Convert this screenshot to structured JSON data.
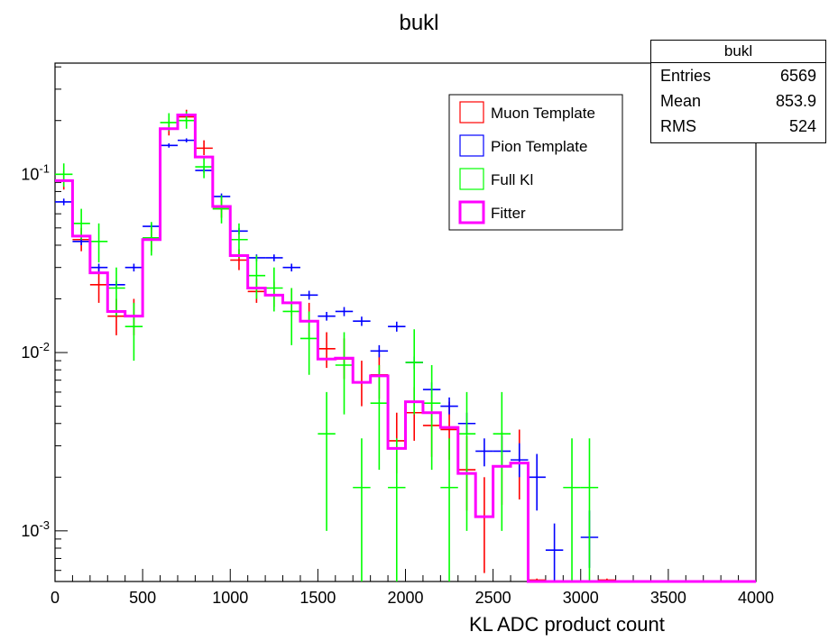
{
  "title": "bukl",
  "xlabel": "KL ADC product count",
  "statbox": {
    "title": "bukl",
    "rows": [
      {
        "label": "Entries",
        "value": "6569"
      },
      {
        "label": "Mean",
        "value": "853.9"
      },
      {
        "label": "RMS",
        "value": "524"
      }
    ]
  },
  "colors": {
    "muon": "#ff0000",
    "pion": "#0000ff",
    "full": "#00ff00",
    "fitter": "#ff00ff"
  },
  "chart_data": {
    "type": "line",
    "title": "bukl",
    "xlabel": "KL ADC product count",
    "ylabel": "",
    "xlim": [
      0,
      4000
    ],
    "ylim": [
      0.00052,
      0.42
    ],
    "yscale": "log",
    "grid": false,
    "legend_position": "top-center",
    "x_tick_labels": [
      "0",
      "500",
      "1000",
      "1500",
      "2000",
      "2500",
      "3000",
      "3500",
      "4000"
    ],
    "y_tick_labels": [
      {
        "base": "10",
        "exp": "-1",
        "value": 0.1
      },
      {
        "base": "10",
        "exp": "-2",
        "value": 0.01
      },
      {
        "base": "10",
        "exp": "-3",
        "value": 0.001
      }
    ],
    "bin_width": 100,
    "bin_centers": [
      50,
      150,
      250,
      350,
      450,
      550,
      650,
      750,
      850,
      950,
      1050,
      1150,
      1250,
      1350,
      1450,
      1550,
      1650,
      1750,
      1850,
      1950,
      2050,
      2150,
      2250,
      2350,
      2450,
      2550,
      2650,
      2750,
      2850,
      2950,
      3050,
      3150,
      3250,
      3350,
      3450,
      3550,
      3650,
      3750,
      3850,
      3950
    ],
    "series": [
      {
        "name": "Muon Template",
        "color": "#ff0000",
        "style": "errorbar",
        "points": [
          {
            "x": 50,
            "y": 0.092,
            "lo": 0.082,
            "hi": 0.104
          },
          {
            "x": 150,
            "y": 0.043,
            "lo": 0.037,
            "hi": 0.05
          },
          {
            "x": 250,
            "y": 0.024,
            "lo": 0.019,
            "hi": 0.03
          },
          {
            "x": 350,
            "y": 0.016,
            "lo": 0.0125,
            "hi": 0.02
          },
          {
            "x": 450,
            "y": 0.016,
            "lo": 0.0125,
            "hi": 0.02
          },
          {
            "x": 550,
            "y": 0.043,
            "lo": 0.037,
            "hi": 0.05
          },
          {
            "x": 650,
            "y": 0.18,
            "lo": 0.165,
            "hi": 0.2
          },
          {
            "x": 750,
            "y": 0.21,
            "lo": 0.195,
            "hi": 0.23
          },
          {
            "x": 850,
            "y": 0.14,
            "lo": 0.128,
            "hi": 0.155
          },
          {
            "x": 950,
            "y": 0.064,
            "lo": 0.057,
            "hi": 0.072
          },
          {
            "x": 1050,
            "y": 0.033,
            "lo": 0.029,
            "hi": 0.038
          },
          {
            "x": 1150,
            "y": 0.022,
            "lo": 0.019,
            "hi": 0.026
          },
          {
            "x": 1250,
            "y": 0.021,
            "lo": 0.018,
            "hi": 0.025
          },
          {
            "x": 1350,
            "y": 0.019,
            "lo": 0.016,
            "hi": 0.023
          },
          {
            "x": 1450,
            "y": 0.015,
            "lo": 0.012,
            "hi": 0.019
          },
          {
            "x": 1550,
            "y": 0.0105,
            "lo": 0.0082,
            "hi": 0.013
          },
          {
            "x": 1650,
            "y": 0.0092,
            "lo": 0.0071,
            "hi": 0.012
          },
          {
            "x": 1750,
            "y": 0.0068,
            "lo": 0.005,
            "hi": 0.009
          },
          {
            "x": 1850,
            "y": 0.0075,
            "lo": 0.0055,
            "hi": 0.0098
          },
          {
            "x": 1950,
            "y": 0.0032,
            "lo": 0.0021,
            "hi": 0.0046
          },
          {
            "x": 2050,
            "y": 0.0046,
            "lo": 0.0032,
            "hi": 0.0064
          },
          {
            "x": 2150,
            "y": 0.0039,
            "lo": 0.0026,
            "hi": 0.0056
          },
          {
            "x": 2250,
            "y": 0.0037,
            "lo": 0.0025,
            "hi": 0.0053
          },
          {
            "x": 2350,
            "y": 0.0022,
            "lo": 0.0013,
            "hi": 0.0034
          },
          {
            "x": 2450,
            "y": 0.0012,
            "lo": 0.00058,
            "hi": 0.002
          },
          {
            "x": 2550,
            "y": 0.0023,
            "lo": 0.0014,
            "hi": 0.0036
          },
          {
            "x": 2650,
            "y": 0.0024,
            "lo": 0.0015,
            "hi": 0.0037
          },
          {
            "x": 2750,
            "y": 0.00053,
            "lo": 0.00052,
            "hi": 0.00054
          },
          {
            "x": 3150,
            "y": 0.00053,
            "lo": 0.00052,
            "hi": 0.00054
          }
        ]
      },
      {
        "name": "Pion Template",
        "color": "#0000ff",
        "style": "errorbar",
        "points": [
          {
            "x": 50,
            "y": 0.07,
            "lo": 0.067,
            "hi": 0.073
          },
          {
            "x": 150,
            "y": 0.042,
            "lo": 0.04,
            "hi": 0.044
          },
          {
            "x": 250,
            "y": 0.03,
            "lo": 0.0285,
            "hi": 0.0315
          },
          {
            "x": 350,
            "y": 0.024,
            "lo": 0.0228,
            "hi": 0.0252
          },
          {
            "x": 450,
            "y": 0.03,
            "lo": 0.0285,
            "hi": 0.0315
          },
          {
            "x": 550,
            "y": 0.051,
            "lo": 0.049,
            "hi": 0.053
          },
          {
            "x": 650,
            "y": 0.145,
            "lo": 0.141,
            "hi": 0.149
          },
          {
            "x": 750,
            "y": 0.155,
            "lo": 0.151,
            "hi": 0.159
          },
          {
            "x": 850,
            "y": 0.105,
            "lo": 0.102,
            "hi": 0.108
          },
          {
            "x": 950,
            "y": 0.075,
            "lo": 0.072,
            "hi": 0.078
          },
          {
            "x": 1050,
            "y": 0.048,
            "lo": 0.046,
            "hi": 0.05
          },
          {
            "x": 1150,
            "y": 0.034,
            "lo": 0.0325,
            "hi": 0.0355
          },
          {
            "x": 1250,
            "y": 0.034,
            "lo": 0.0325,
            "hi": 0.0355
          },
          {
            "x": 1350,
            "y": 0.03,
            "lo": 0.0285,
            "hi": 0.0315
          },
          {
            "x": 1450,
            "y": 0.021,
            "lo": 0.0198,
            "hi": 0.0222
          },
          {
            "x": 1550,
            "y": 0.016,
            "lo": 0.0151,
            "hi": 0.0169
          },
          {
            "x": 1650,
            "y": 0.017,
            "lo": 0.016,
            "hi": 0.018
          },
          {
            "x": 1750,
            "y": 0.015,
            "lo": 0.0141,
            "hi": 0.0159
          },
          {
            "x": 1850,
            "y": 0.0102,
            "lo": 0.0094,
            "hi": 0.011
          },
          {
            "x": 1950,
            "y": 0.014,
            "lo": 0.0131,
            "hi": 0.0149
          },
          {
            "x": 2050,
            "y": 0.0088,
            "lo": 0.0081,
            "hi": 0.0095
          },
          {
            "x": 2150,
            "y": 0.0062,
            "lo": 0.0056,
            "hi": 0.0068
          },
          {
            "x": 2250,
            "y": 0.005,
            "lo": 0.0045,
            "hi": 0.0056
          },
          {
            "x": 2350,
            "y": 0.004,
            "lo": 0.0035,
            "hi": 0.0046
          },
          {
            "x": 2450,
            "y": 0.0028,
            "lo": 0.0023,
            "hi": 0.0033
          },
          {
            "x": 2550,
            "y": 0.0028,
            "lo": 0.0023,
            "hi": 0.0034
          },
          {
            "x": 2650,
            "y": 0.0025,
            "lo": 0.002,
            "hi": 0.0031
          },
          {
            "x": 2750,
            "y": 0.002,
            "lo": 0.0013,
            "hi": 0.0027
          },
          {
            "x": 2850,
            "y": 0.00078,
            "lo": 0.00052,
            "hi": 0.0011
          },
          {
            "x": 3050,
            "y": 0.00092,
            "lo": 0.00062,
            "hi": 0.0013
          }
        ]
      },
      {
        "name": "Full Kl",
        "color": "#00ff00",
        "style": "errorbar",
        "points": [
          {
            "x": 50,
            "y": 0.1,
            "lo": 0.085,
            "hi": 0.115
          },
          {
            "x": 150,
            "y": 0.053,
            "lo": 0.043,
            "hi": 0.064
          },
          {
            "x": 250,
            "y": 0.042,
            "lo": 0.032,
            "hi": 0.053
          },
          {
            "x": 350,
            "y": 0.023,
            "lo": 0.016,
            "hi": 0.03
          },
          {
            "x": 450,
            "y": 0.014,
            "lo": 0.009,
            "hi": 0.019
          },
          {
            "x": 550,
            "y": 0.044,
            "lo": 0.035,
            "hi": 0.054
          },
          {
            "x": 650,
            "y": 0.195,
            "lo": 0.175,
            "hi": 0.22
          },
          {
            "x": 750,
            "y": 0.2,
            "lo": 0.18,
            "hi": 0.225
          },
          {
            "x": 850,
            "y": 0.11,
            "lo": 0.095,
            "hi": 0.125
          },
          {
            "x": 950,
            "y": 0.064,
            "lo": 0.053,
            "hi": 0.076
          },
          {
            "x": 1050,
            "y": 0.043,
            "lo": 0.034,
            "hi": 0.053
          },
          {
            "x": 1150,
            "y": 0.027,
            "lo": 0.02,
            "hi": 0.035
          },
          {
            "x": 1250,
            "y": 0.023,
            "lo": 0.017,
            "hi": 0.03
          },
          {
            "x": 1350,
            "y": 0.017,
            "lo": 0.011,
            "hi": 0.023
          },
          {
            "x": 1450,
            "y": 0.012,
            "lo": 0.0075,
            "hi": 0.017
          },
          {
            "x": 1550,
            "y": 0.0035,
            "lo": 0.001,
            "hi": 0.006
          },
          {
            "x": 1650,
            "y": 0.0085,
            "lo": 0.0045,
            "hi": 0.013
          },
          {
            "x": 1750,
            "y": 0.00175,
            "lo": 0.00052,
            "hi": 0.0033
          },
          {
            "x": 1850,
            "y": 0.0052,
            "lo": 0.0022,
            "hi": 0.0085
          },
          {
            "x": 1950,
            "y": 0.00175,
            "lo": 0.00052,
            "hi": 0.0033
          },
          {
            "x": 2050,
            "y": 0.0088,
            "lo": 0.0045,
            "hi": 0.0135
          },
          {
            "x": 2150,
            "y": 0.0052,
            "lo": 0.0022,
            "hi": 0.0085
          },
          {
            "x": 2250,
            "y": 0.00175,
            "lo": 0.00052,
            "hi": 0.0033
          },
          {
            "x": 2350,
            "y": 0.0035,
            "lo": 0.001,
            "hi": 0.006
          },
          {
            "x": 2550,
            "y": 0.0035,
            "lo": 0.001,
            "hi": 0.006
          },
          {
            "x": 2950,
            "y": 0.00175,
            "lo": 0.00052,
            "hi": 0.0033
          },
          {
            "x": 3050,
            "y": 0.00175,
            "lo": 0.00052,
            "hi": 0.0033
          }
        ]
      },
      {
        "name": "Fitter",
        "color": "#ff00ff",
        "style": "step",
        "values": [
          0.092,
          0.045,
          0.028,
          0.017,
          0.016,
          0.043,
          0.18,
          0.215,
          0.125,
          0.066,
          0.035,
          0.023,
          0.021,
          0.019,
          0.015,
          0.0092,
          0.0093,
          0.0068,
          0.0074,
          0.0029,
          0.0053,
          0.0046,
          0.0038,
          0.0021,
          0.0012,
          0.0023,
          0.0024,
          0.00052,
          0.00052,
          0.00052,
          0.00052,
          0.00052,
          0.00052,
          0.00052,
          0.00052,
          0.00052,
          0.00052,
          0.00052,
          0.00052,
          0.00052
        ]
      }
    ]
  }
}
